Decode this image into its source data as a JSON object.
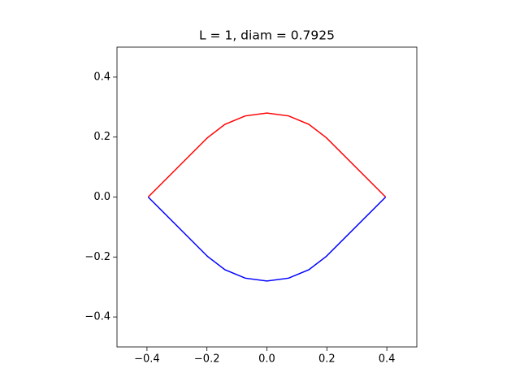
{
  "chart_data": {
    "type": "line",
    "title": "L = 1, diam = 0.7925",
    "x": [
      -0.396,
      -0.198,
      -0.14,
      -0.0725,
      0,
      0.0725,
      0.14,
      0.198,
      0.396
    ],
    "series": [
      {
        "color": "#ff0000",
        "values": [
          0,
          0.198,
          0.2425,
          0.2705,
          0.28,
          0.2705,
          0.2425,
          0.198,
          0
        ]
      },
      {
        "color": "#0000ff",
        "values": [
          0,
          -0.198,
          -0.2425,
          -0.2705,
          -0.28,
          -0.2705,
          -0.2425,
          -0.198,
          0
        ]
      }
    ],
    "xlim": [
      -0.5,
      0.5
    ],
    "ylim": [
      -0.5,
      0.5
    ],
    "xticks": [
      {
        "value": -0.4,
        "label": "−0.4"
      },
      {
        "value": -0.2,
        "label": "−0.2"
      },
      {
        "value": 0,
        "label": "0.0"
      },
      0.2,
      0.4
    ],
    "yticks": [
      {
        "value": -0.4,
        "label": "−0.4"
      },
      {
        "value": -0.2,
        "label": "−0.2"
      },
      {
        "value": 0,
        "label": "0.0"
      },
      0.2,
      0.4
    ],
    "grid": false
  }
}
